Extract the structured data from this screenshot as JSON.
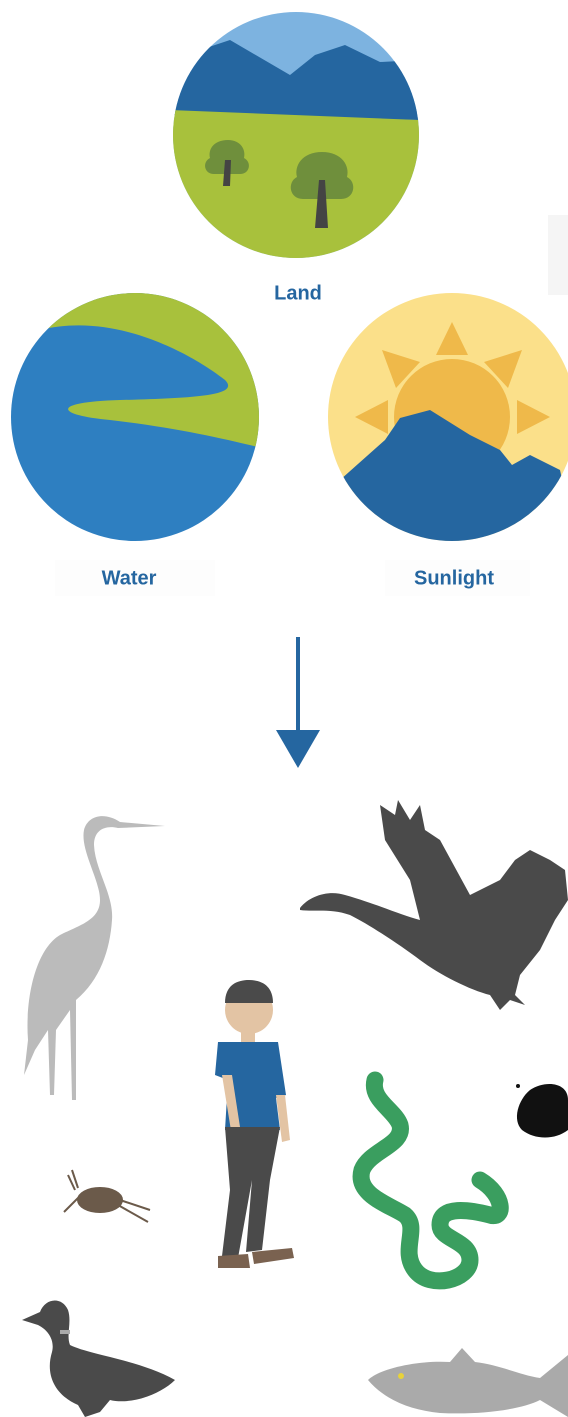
{
  "labels": [
    "Land",
    "Water",
    "Sunlight"
  ]
}
